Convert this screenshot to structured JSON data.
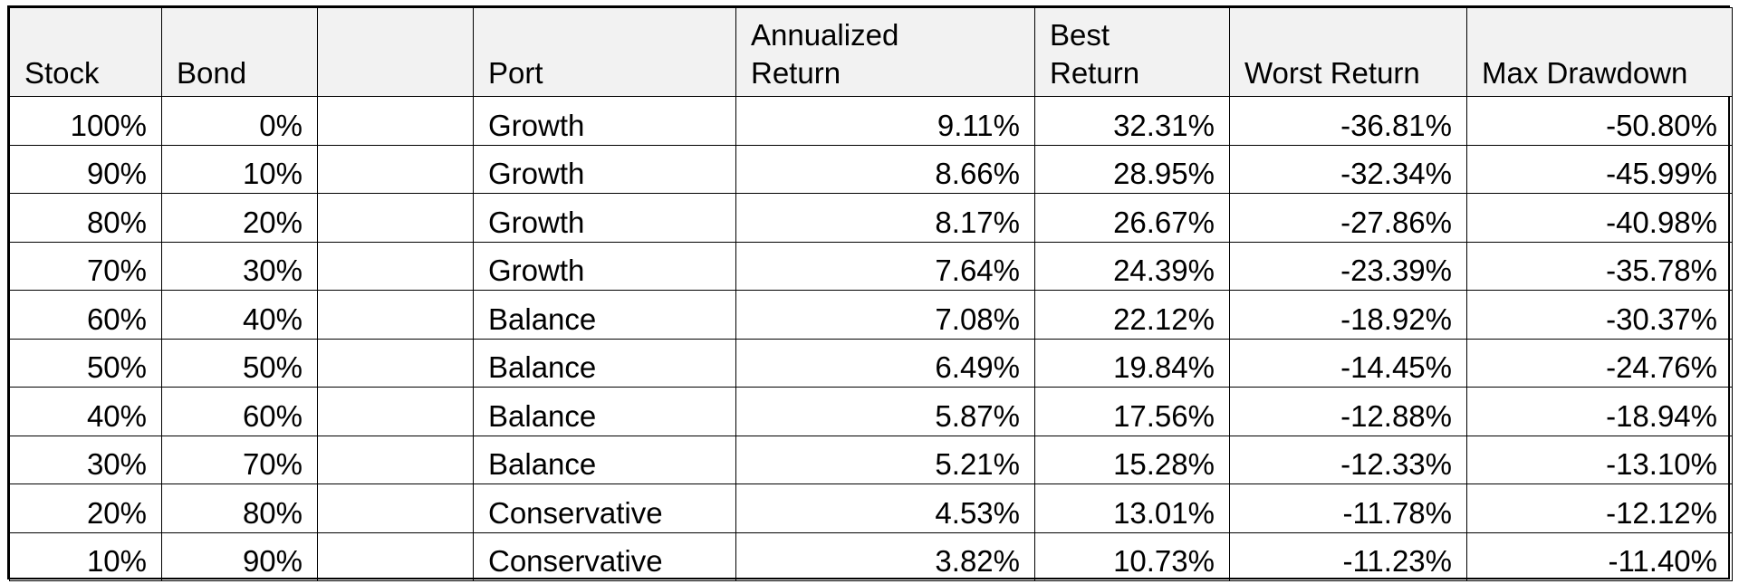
{
  "table": {
    "headers": [
      {
        "lines": [
          "Stock"
        ]
      },
      {
        "lines": [
          "Bond"
        ]
      },
      {
        "lines": [
          ""
        ]
      },
      {
        "lines": [
          "Port"
        ]
      },
      {
        "lines": [
          "Annualized",
          "Return"
        ]
      },
      {
        "lines": [
          "Best",
          "Return"
        ]
      },
      {
        "lines": [
          "Worst Return"
        ]
      },
      {
        "lines": [
          "Max Drawdown"
        ]
      }
    ],
    "rows": [
      [
        "100%",
        "0%",
        "",
        "Growth",
        "9.11%",
        "32.31%",
        "-36.81%",
        "-50.80%"
      ],
      [
        "90%",
        "10%",
        "",
        "Growth",
        "8.66%",
        "28.95%",
        "-32.34%",
        "-45.99%"
      ],
      [
        "80%",
        "20%",
        "",
        "Growth",
        "8.17%",
        "26.67%",
        "-27.86%",
        "-40.98%"
      ],
      [
        "70%",
        "30%",
        "",
        "Growth",
        "7.64%",
        "24.39%",
        "-23.39%",
        "-35.78%"
      ],
      [
        "60%",
        "40%",
        "",
        "Balance",
        "7.08%",
        "22.12%",
        "-18.92%",
        "-30.37%"
      ],
      [
        "50%",
        "50%",
        "",
        "Balance",
        "6.49%",
        "19.84%",
        "-14.45%",
        "-24.76%"
      ],
      [
        "40%",
        "60%",
        "",
        "Balance",
        "5.87%",
        "17.56%",
        "-12.88%",
        "-18.94%"
      ],
      [
        "30%",
        "70%",
        "",
        "Balance",
        "5.21%",
        "15.28%",
        "-12.33%",
        "-13.10%"
      ],
      [
        "20%",
        "80%",
        "",
        "Conservative",
        "4.53%",
        "13.01%",
        "-11.78%",
        "-12.12%"
      ],
      [
        "10%",
        "90%",
        "",
        "Conservative",
        "3.82%",
        "10.73%",
        "-11.23%",
        "-11.40%"
      ]
    ]
  }
}
